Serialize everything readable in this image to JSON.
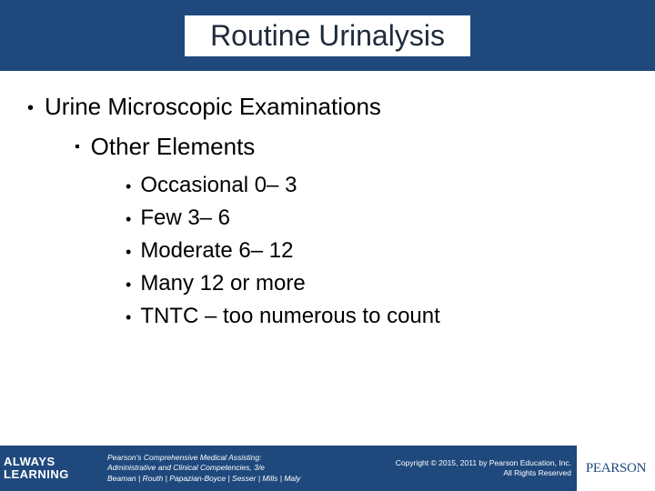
{
  "title": "Routine Urinalysis",
  "level1": "Urine Microscopic Examinations",
  "level2": "Other Elements",
  "items": [
    "Occasional 0– 3",
    "Few 3– 6",
    "Moderate 6– 12",
    "Many 12 or more",
    "TNTC – too numerous to count"
  ],
  "footer": {
    "tagline1": "ALWAYS",
    "tagline2": "LEARNING",
    "book_line1": "Pearson's Comprehensive Medical Assisting:",
    "book_line2": "Administrative and Clinical Competencies, 3/e",
    "book_line3": "Beaman | Routh | Papazian-Boyce | Sesser | Mills | Maly",
    "copy_line1": "Copyright © 2015, 2011 by Pearson Education, Inc.",
    "copy_line2": "All Rights Reserved",
    "logo": "PEARSON"
  },
  "colors": {
    "band": "#1f497d",
    "text": "#000000",
    "bg": "#ffffff"
  }
}
